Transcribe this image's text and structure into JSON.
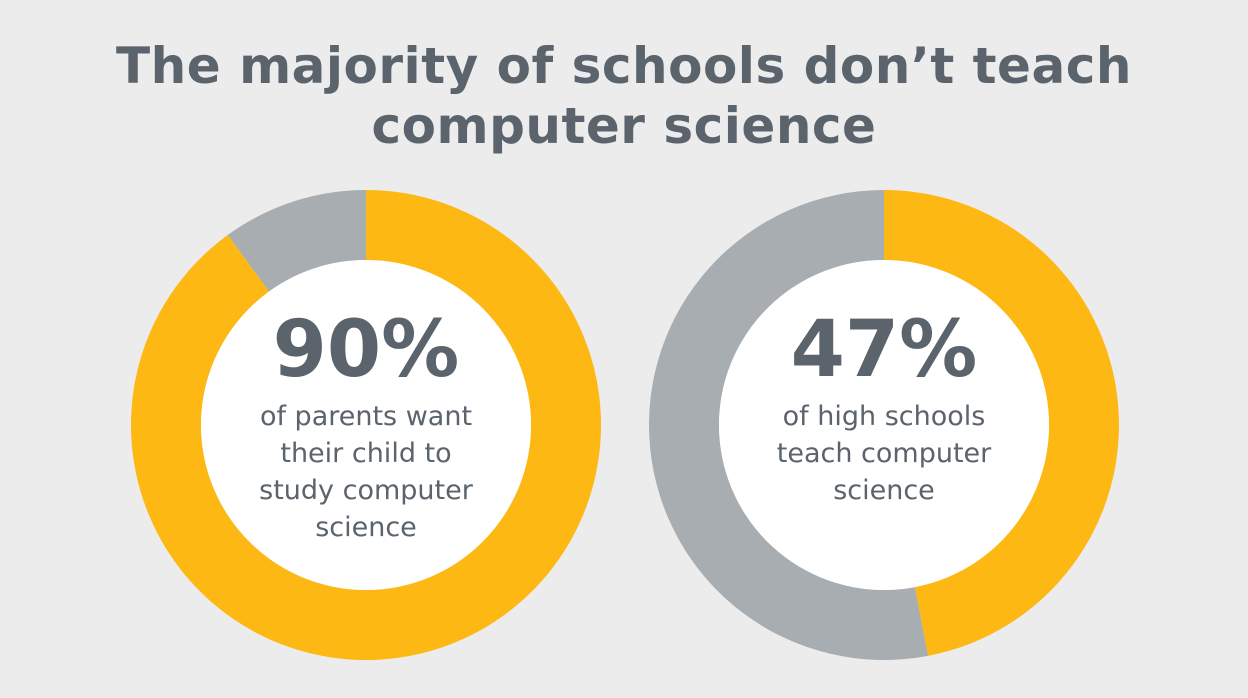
{
  "title": {
    "line1": "The majority of schools don’t teach",
    "line2": "computer science"
  },
  "colors": {
    "background": "#ececec",
    "highlight": "#fdb813",
    "remainder": "#a8adb2",
    "text": "#5b636c",
    "center": "#ffffff"
  },
  "chart_data": [
    {
      "type": "pie",
      "variant": "donut",
      "value": 90,
      "value_label": "90%",
      "description": "of parents want their child to study computer science",
      "slices": [
        90,
        10
      ]
    },
    {
      "type": "pie",
      "variant": "donut",
      "value": 47,
      "value_label": "47%",
      "description": "of high schools teach computer science",
      "slices": [
        47,
        53
      ]
    }
  ]
}
